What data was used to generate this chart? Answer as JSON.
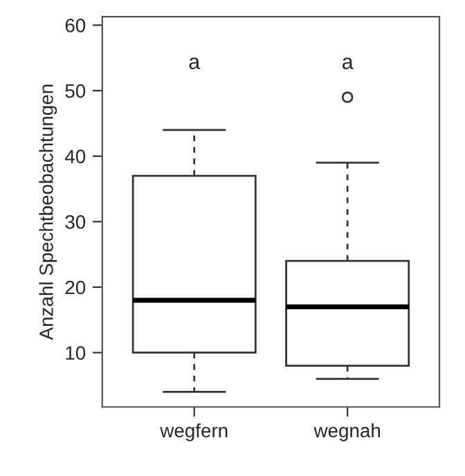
{
  "chart_data": {
    "type": "box",
    "ylabel": "Anzahl Spechtbeobachtungen",
    "categories": [
      "wegfern",
      "wegnah"
    ],
    "boxes": [
      {
        "low": 4,
        "q1": 10,
        "median": 18,
        "q3": 37,
        "high": 44
      },
      {
        "low": 6,
        "q1": 8,
        "median": 17,
        "q3": 24,
        "high": 39,
        "outliers": [
          49
        ]
      }
    ],
    "ylim": [
      1.7,
      61.3
    ],
    "yticks": [
      10,
      20,
      30,
      40,
      50,
      60
    ],
    "annotations": [
      "a",
      "a"
    ],
    "grid": false
  }
}
